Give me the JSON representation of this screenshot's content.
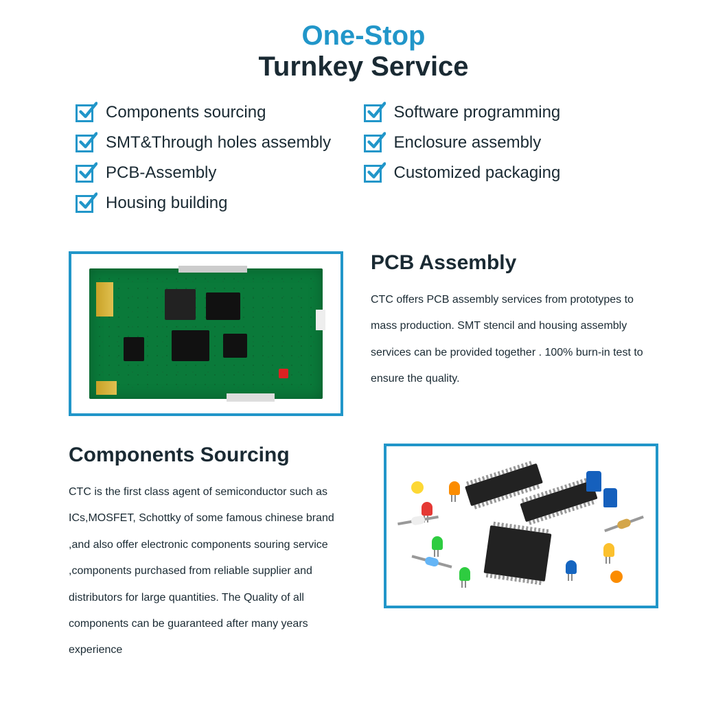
{
  "colors": {
    "accent": "#2196c9",
    "text": "#1a2a33",
    "frame": "#2196c9"
  },
  "header": {
    "line1": "One-Stop",
    "line1_color": "#2196c9",
    "line2": "Turnkey Service",
    "line2_color": "#1a2a33"
  },
  "features": {
    "left": [
      "Components sourcing",
      "SMT&Through holes assembly",
      "PCB-Assembly",
      "Housing building"
    ],
    "right": [
      "Software programming",
      "Enclosure assembly",
      "Customized packaging"
    ],
    "checkbox_border_color": "#2196c9",
    "tick_color": "#2196c9"
  },
  "section1": {
    "title": "PCB Assembly",
    "body": "CTC offers PCB assembly services from prototypes to mass production. SMT stencil and housing assembly services can be provided together . 100% burn-in test to ensure the quality.",
    "image_desc": "green-pcb-board"
  },
  "section2": {
    "title": "Components Sourcing",
    "body": "CTC is the first class agent of semiconductor such as ICs,MOSFET, Schottky of some famous chinese brand ,and also offer electronic components souring service ,components purchased from reliable supplier and distributors for large quantities. The Quality of all components can be guaranteed  after many years experience",
    "image_desc": "electronic-components-pile"
  }
}
